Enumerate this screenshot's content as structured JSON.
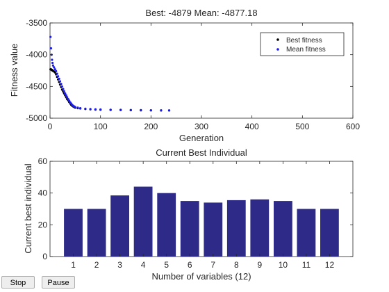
{
  "chart_data": [
    {
      "type": "scatter",
      "title": "Best: -4879 Mean: -4877.18",
      "xlabel": "Generation",
      "ylabel": "Fitness value",
      "xlim": [
        0,
        600
      ],
      "ylim": [
        -5000,
        -3500
      ],
      "xticks": [
        "0",
        "100",
        "200",
        "300",
        "400",
        "500",
        "600"
      ],
      "yticks": [
        "-5000",
        "-4500",
        "-4000",
        "-3500"
      ],
      "grid": false,
      "legend_position": "top-right",
      "series": [
        {
          "name": "Best fitness",
          "color": "#000000",
          "marker": "dot",
          "x": [
            1,
            2,
            3,
            4,
            5,
            6,
            8,
            10,
            12,
            14,
            16,
            18,
            20,
            22,
            24,
            26,
            28,
            30,
            32,
            34,
            36,
            38,
            40,
            42,
            44,
            46,
            48,
            50,
            55,
            60,
            70,
            80,
            90,
            100,
            120,
            140,
            160,
            180,
            200,
            220,
            236
          ],
          "y": [
            -4230,
            -4230,
            -4240,
            -4240,
            -4250,
            -4255,
            -4265,
            -4280,
            -4310,
            -4350,
            -4390,
            -4430,
            -4470,
            -4510,
            -4550,
            -4580,
            -4610,
            -4640,
            -4670,
            -4700,
            -4720,
            -4745,
            -4770,
            -4790,
            -4805,
            -4815,
            -4825,
            -4835,
            -4842,
            -4847,
            -4855,
            -4860,
            -4864,
            -4867,
            -4870,
            -4872,
            -4874,
            -4876,
            -4877,
            -4878,
            -4879
          ]
        },
        {
          "name": "Mean fitness",
          "color": "#1c1cf0",
          "marker": "dot",
          "x": [
            1,
            2,
            3,
            4,
            5,
            6,
            8,
            10,
            12,
            14,
            16,
            18,
            20,
            22,
            24,
            26,
            28,
            30,
            32,
            34,
            36,
            38,
            40,
            42,
            44,
            46,
            48,
            50,
            55,
            60,
            70,
            80,
            90,
            100,
            120,
            140,
            160,
            180,
            200,
            220,
            236
          ],
          "y": [
            -3720,
            -3900,
            -4000,
            -4080,
            -4130,
            -4170,
            -4200,
            -4230,
            -4260,
            -4300,
            -4340,
            -4380,
            -4420,
            -4460,
            -4500,
            -4540,
            -4575,
            -4610,
            -4640,
            -4670,
            -4700,
            -4725,
            -4750,
            -4770,
            -4790,
            -4805,
            -4815,
            -4825,
            -4835,
            -4842,
            -4850,
            -4856,
            -4860,
            -4863,
            -4866,
            -4869,
            -4871,
            -4873,
            -4875,
            -4876,
            -4877.18
          ]
        }
      ]
    },
    {
      "type": "bar",
      "title": "Current Best Individual",
      "xlabel": "Number of variables (12)",
      "ylabel": "Current best individual",
      "ylim": [
        0,
        60
      ],
      "yticks": [
        "0",
        "20",
        "40",
        "60"
      ],
      "grid": false,
      "bar_color": "#2e2a87",
      "categories": [
        "1",
        "2",
        "3",
        "4",
        "5",
        "6",
        "7",
        "8",
        "9",
        "10",
        "11",
        "12"
      ],
      "values": [
        30,
        30,
        38.5,
        44,
        40,
        35,
        34,
        35.5,
        36,
        35,
        30,
        30
      ]
    }
  ],
  "controls": {
    "stop_label": "Stop",
    "pause_label": "Pause"
  }
}
